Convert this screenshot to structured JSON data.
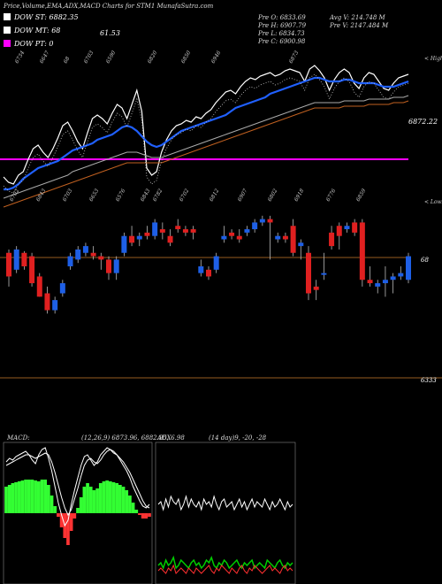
{
  "header": {
    "title": "Price,Volume,EMA,ADX,MACD Charts for STM1 MunafaSutra.com",
    "stats_left": [
      "Pre O: 6833.69",
      "Pre H: 6907.79",
      "Pre L: 6834.73",
      "Pre C: 6900.98"
    ],
    "stats_right": [
      "Avg V: 214.748 M",
      "Pre V: 2147.484 M"
    ]
  },
  "legend": [
    {
      "label": "DOW ST: 6882.35",
      "color": "#ffffff"
    },
    {
      "label": "DOW MT: 68",
      "color": "#ffffff"
    },
    {
      "label": "DOW PT: 0",
      "color": "#ff00ff"
    }
  ],
  "extra_label": "61.53",
  "chart_data": [
    {
      "type": "line",
      "name": "price-ema",
      "top_labels": [
        "6734",
        "6647",
        "68",
        "6703",
        "6590",
        "6820",
        "6850",
        "6946",
        "6873"
      ],
      "bottom_labels": [
        "6702",
        "6843",
        "6703",
        "6653",
        "6576",
        "6843",
        "6782",
        "6702",
        "6812",
        "6907",
        "6802",
        "6918",
        "6776",
        "6859"
      ],
      "corner_label_top": "< Highs",
      "corner_label_bottom": "< Lows",
      "last_value_label": "6872.22",
      "magenta_level": 50,
      "series": [
        {
          "color": "#ffffff",
          "values": [
            30,
            24,
            22,
            32,
            36,
            50,
            62,
            66,
            58,
            52,
            62,
            74,
            88,
            92,
            82,
            70,
            62,
            80,
            96,
            100,
            96,
            90,
            102,
            112,
            108,
            96,
            112,
            128,
            104,
            40,
            32,
            36,
            58,
            72,
            82,
            88,
            90,
            94,
            92,
            98,
            96,
            102,
            106,
            114,
            120,
            126,
            128,
            124,
            132,
            138,
            142,
            140,
            144,
            146,
            148,
            144,
            146,
            150,
            152,
            150,
            148,
            138,
            152,
            156,
            150,
            142,
            128,
            140,
            148,
            152,
            148,
            136,
            130,
            142,
            148,
            146,
            138,
            130,
            128,
            136,
            142,
            144,
            146
          ]
        },
        {
          "color": "#2060ff",
          "values": [
            16,
            16,
            18,
            22,
            28,
            32,
            36,
            40,
            42,
            44,
            46,
            48,
            52,
            56,
            60,
            62,
            64,
            66,
            68,
            72,
            74,
            76,
            78,
            82,
            86,
            88,
            86,
            82,
            76,
            70,
            66,
            64,
            66,
            70,
            74,
            78,
            82,
            84,
            86,
            88,
            90,
            92,
            94,
            96,
            98,
            100,
            104,
            108,
            110,
            112,
            114,
            116,
            118,
            120,
            124,
            126,
            128,
            130,
            132,
            134,
            136,
            138,
            140,
            142,
            142,
            140,
            138,
            138,
            138,
            140,
            140,
            138,
            136,
            136,
            136,
            136,
            134,
            132,
            132,
            132,
            134,
            136,
            138
          ]
        },
        {
          "color": "#aaaaaa",
          "values": [
            6,
            8,
            10,
            12,
            14,
            16,
            18,
            20,
            22,
            24,
            26,
            28,
            30,
            32,
            36,
            38,
            40,
            42,
            44,
            46,
            48,
            50,
            52,
            54,
            56,
            58,
            58,
            58,
            56,
            54,
            52,
            52,
            52,
            54,
            56,
            58,
            60,
            62,
            64,
            66,
            68,
            70,
            72,
            74,
            76,
            78,
            80,
            82,
            84,
            86,
            88,
            90,
            92,
            94,
            96,
            98,
            100,
            102,
            104,
            106,
            108,
            110,
            112,
            114,
            114,
            114,
            114,
            114,
            114,
            116,
            116,
            116,
            116,
            116,
            118,
            118,
            118,
            118,
            118,
            120,
            120,
            120,
            122
          ]
        },
        {
          "color": "#c06020",
          "values": [
            -4,
            -2,
            0,
            2,
            4,
            6,
            8,
            10,
            12,
            14,
            16,
            18,
            20,
            22,
            24,
            26,
            28,
            30,
            32,
            34,
            36,
            38,
            40,
            42,
            44,
            46,
            46,
            46,
            46,
            46,
            46,
            46,
            46,
            48,
            50,
            52,
            54,
            56,
            58,
            60,
            62,
            64,
            66,
            68,
            70,
            72,
            74,
            76,
            78,
            80,
            82,
            84,
            86,
            88,
            90,
            92,
            94,
            96,
            98,
            100,
            102,
            104,
            106,
            108,
            108,
            108,
            108,
            108,
            108,
            110,
            110,
            110,
            110,
            110,
            112,
            112,
            112,
            112,
            112,
            114,
            114,
            114,
            116
          ]
        }
      ]
    },
    {
      "type": "candlestick",
      "name": "ohlc",
      "right_label": "68",
      "bottom_right_label": "6333",
      "candles": [
        {
          "o": 6700,
          "h": 6710,
          "l": 6600,
          "c": 6630
        },
        {
          "o": 6650,
          "h": 6720,
          "l": 6640,
          "c": 6710
        },
        {
          "o": 6700,
          "h": 6705,
          "l": 6650,
          "c": 6660
        },
        {
          "o": 6690,
          "h": 6700,
          "l": 6600,
          "c": 6610
        },
        {
          "o": 6630,
          "h": 6640,
          "l": 6570,
          "c": 6570
        },
        {
          "o": 6580,
          "h": 6600,
          "l": 6520,
          "c": 6530
        },
        {
          "o": 6530,
          "h": 6570,
          "l": 6520,
          "c": 6560
        },
        {
          "o": 6580,
          "h": 6620,
          "l": 6570,
          "c": 6610
        },
        {
          "o": 6660,
          "h": 6700,
          "l": 6650,
          "c": 6690
        },
        {
          "o": 6680,
          "h": 6720,
          "l": 6670,
          "c": 6710
        },
        {
          "o": 6700,
          "h": 6730,
          "l": 6690,
          "c": 6720
        },
        {
          "o": 6700,
          "h": 6720,
          "l": 6680,
          "c": 6690
        },
        {
          "o": 6690,
          "h": 6700,
          "l": 6650,
          "c": 6680
        },
        {
          "o": 6680,
          "h": 6690,
          "l": 6620,
          "c": 6640
        },
        {
          "o": 6640,
          "h": 6690,
          "l": 6620,
          "c": 6680
        },
        {
          "o": 6700,
          "h": 6760,
          "l": 6690,
          "c": 6750
        },
        {
          "o": 6750,
          "h": 6780,
          "l": 6720,
          "c": 6730
        },
        {
          "o": 6740,
          "h": 6760,
          "l": 6720,
          "c": 6750
        },
        {
          "o": 6760,
          "h": 6780,
          "l": 6740,
          "c": 6750
        },
        {
          "o": 6750,
          "h": 6800,
          "l": 6740,
          "c": 6790
        },
        {
          "o": 6770,
          "h": 6790,
          "l": 6740,
          "c": 6760
        },
        {
          "o": 6750,
          "h": 6770,
          "l": 6720,
          "c": 6730
        },
        {
          "o": 6780,
          "h": 6800,
          "l": 6760,
          "c": 6770
        },
        {
          "o": 6770,
          "h": 6780,
          "l": 6750,
          "c": 6760
        },
        {
          "o": 6770,
          "h": 6780,
          "l": 6740,
          "c": 6760
        },
        {
          "o": 6640,
          "h": 6680,
          "l": 6630,
          "c": 6660
        },
        {
          "o": 6650,
          "h": 6660,
          "l": 6620,
          "c": 6630
        },
        {
          "o": 6650,
          "h": 6700,
          "l": 6640,
          "c": 6690
        },
        {
          "o": 6740,
          "h": 6780,
          "l": 6730,
          "c": 6750
        },
        {
          "o": 6760,
          "h": 6770,
          "l": 6740,
          "c": 6750
        },
        {
          "o": 6750,
          "h": 6770,
          "l": 6730,
          "c": 6740
        },
        {
          "o": 6760,
          "h": 6780,
          "l": 6750,
          "c": 6770
        },
        {
          "o": 6770,
          "h": 6800,
          "l": 6760,
          "c": 6790
        },
        {
          "o": 6790,
          "h": 6810,
          "l": 6780,
          "c": 6800
        },
        {
          "o": 6800,
          "h": 6810,
          "l": 6680,
          "c": 6790
        },
        {
          "o": 6740,
          "h": 6760,
          "l": 6730,
          "c": 6750
        },
        {
          "o": 6750,
          "h": 6760,
          "l": 6730,
          "c": 6740
        },
        {
          "o": 6780,
          "h": 6800,
          "l": 6690,
          "c": 6700
        },
        {
          "o": 6720,
          "h": 6740,
          "l": 6680,
          "c": 6730
        },
        {
          "o": 6700,
          "h": 6720,
          "l": 6560,
          "c": 6580
        },
        {
          "o": 6600,
          "h": 6620,
          "l": 6560,
          "c": 6590
        },
        {
          "o": 6640,
          "h": 6700,
          "l": 6620,
          "c": 6640
        },
        {
          "o": 6760,
          "h": 6780,
          "l": 6710,
          "c": 6720
        },
        {
          "o": 6780,
          "h": 6790,
          "l": 6710,
          "c": 6750
        },
        {
          "o": 6770,
          "h": 6790,
          "l": 6760,
          "c": 6780
        },
        {
          "o": 6790,
          "h": 6800,
          "l": 6750,
          "c": 6760
        },
        {
          "o": 6790,
          "h": 6800,
          "l": 6600,
          "c": 6620
        },
        {
          "o": 6620,
          "h": 6660,
          "l": 6600,
          "c": 6610
        },
        {
          "o": 6600,
          "h": 6620,
          "l": 6580,
          "c": 6610
        },
        {
          "o": 6610,
          "h": 6660,
          "l": 6570,
          "c": 6620
        },
        {
          "o": 6620,
          "h": 6640,
          "l": 6580,
          "c": 6630
        },
        {
          "o": 6630,
          "h": 6660,
          "l": 6620,
          "c": 6640
        },
        {
          "o": 6620,
          "h": 6700,
          "l": 6610,
          "c": 6690
        }
      ]
    },
    {
      "type": "line",
      "name": "macd",
      "title": "MACD:",
      "params": "(12,26,9) 6873.96, 6882.95, 6.98",
      "histogram": [
        30,
        32,
        34,
        35,
        36,
        37,
        38,
        38,
        38,
        37,
        36,
        38,
        38,
        32,
        20,
        8,
        -4,
        -16,
        -28,
        -36,
        -20,
        -6,
        6,
        18,
        30,
        34,
        30,
        26,
        28,
        34,
        36,
        37,
        36,
        35,
        34,
        32,
        30,
        26,
        20,
        12,
        4,
        -2,
        -6,
        -6,
        -4
      ],
      "series": [
        {
          "color": "#ffffff",
          "values": [
            58,
            62,
            60,
            64,
            66,
            68,
            70,
            66,
            60,
            56,
            66,
            72,
            74,
            62,
            48,
            30,
            12,
            -2,
            -14,
            -8,
            10,
            26,
            40,
            54,
            64,
            66,
            60,
            54,
            58,
            66,
            70,
            74,
            72,
            68,
            66,
            60,
            54,
            48,
            40,
            30,
            22,
            14,
            8,
            6,
            10
          ]
        },
        {
          "color": "#ffffff",
          "values": [
            54,
            56,
            58,
            60,
            62,
            64,
            66,
            66,
            64,
            62,
            64,
            66,
            68,
            66,
            58,
            46,
            32,
            18,
            6,
            -2,
            4,
            16,
            28,
            42,
            54,
            60,
            62,
            58,
            56,
            60,
            66,
            70,
            72,
            70,
            66,
            62,
            58,
            52,
            46,
            38,
            30,
            22,
            14,
            8,
            6
          ]
        }
      ]
    },
    {
      "type": "line",
      "name": "adx",
      "title": "ADX",
      "params": "(14 day)9, -20, -28",
      "series": [
        {
          "color": "#ffffff",
          "values": [
            60,
            62,
            56,
            64,
            58,
            66,
            62,
            60,
            64,
            56,
            60,
            66,
            58,
            64,
            60,
            58,
            62,
            56,
            64,
            60,
            62,
            58,
            66,
            60,
            56,
            62,
            64,
            58,
            60,
            62,
            56,
            60,
            64,
            58,
            62,
            56,
            60,
            64,
            58,
            62,
            60,
            58,
            64,
            60,
            56,
            62,
            58,
            60,
            64,
            60,
            56,
            62,
            58,
            60
          ]
        },
        {
          "color": "#00cc00",
          "values": [
            14,
            16,
            12,
            18,
            14,
            16,
            20,
            12,
            14,
            18,
            16,
            14,
            12,
            16,
            18,
            14,
            16,
            12,
            14,
            18,
            16,
            20,
            14,
            12,
            16,
            14,
            18,
            16,
            12,
            14,
            16,
            18,
            14,
            12,
            16,
            14,
            16,
            18,
            12,
            14,
            16,
            14,
            12,
            18,
            16,
            14,
            12,
            16,
            18,
            14,
            12,
            16,
            14,
            16
          ]
        },
        {
          "color": "#ff3030",
          "values": [
            10,
            12,
            10,
            8,
            12,
            10,
            14,
            8,
            10,
            12,
            10,
            8,
            12,
            10,
            8,
            12,
            10,
            8,
            10,
            12,
            14,
            10,
            8,
            12,
            10,
            14,
            12,
            10,
            8,
            12,
            10,
            8,
            12,
            14,
            10,
            8,
            12,
            10,
            14,
            12,
            10,
            8,
            10,
            12,
            14,
            10,
            12,
            10,
            8,
            12,
            14,
            10,
            12,
            10
          ]
        }
      ]
    }
  ]
}
